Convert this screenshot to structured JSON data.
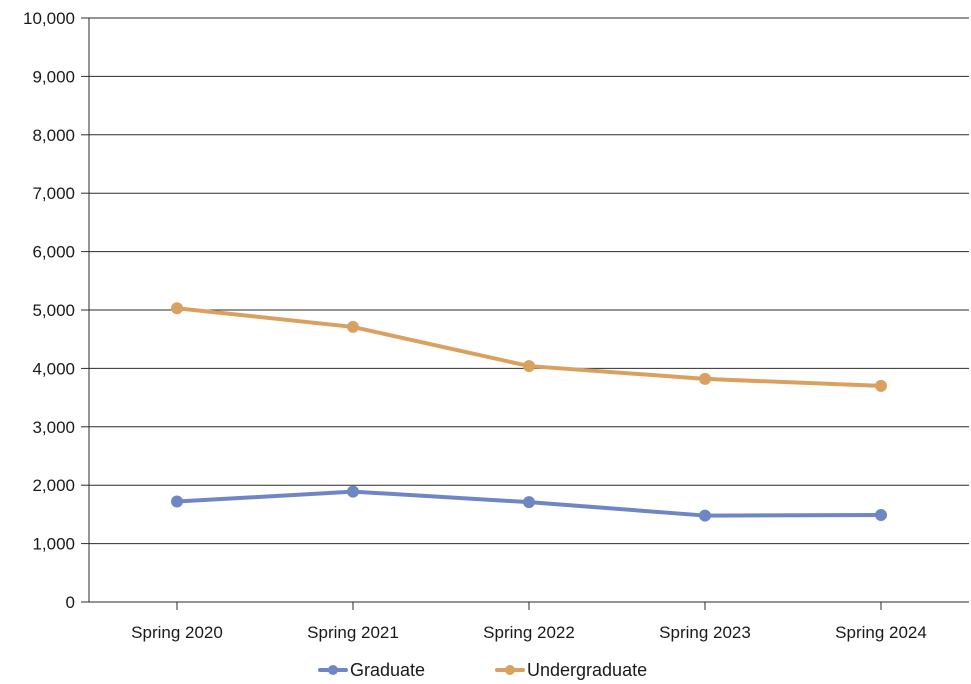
{
  "chart_data": {
    "type": "line",
    "title": "",
    "xlabel": "",
    "ylabel": "",
    "categories": [
      "Spring 2020",
      "Spring 2021",
      "Spring 2022",
      "Spring 2023",
      "Spring 2024"
    ],
    "ylim": [
      0,
      10000
    ],
    "yticks": [
      "0",
      "1,000",
      "2,000",
      "3,000",
      "4,000",
      "5,000",
      "6,000",
      "7,000",
      "8,000",
      "9,000",
      "10,000"
    ],
    "grid": "horizontal",
    "legend_position": "bottom",
    "series": [
      {
        "name": "Graduate",
        "color": "#6f86c4",
        "values": [
          1720,
          1890,
          1710,
          1480,
          1490
        ]
      },
      {
        "name": "Undergraduate",
        "color": "#d9a060",
        "values": [
          5030,
          4710,
          4040,
          3820,
          3700
        ]
      }
    ]
  }
}
